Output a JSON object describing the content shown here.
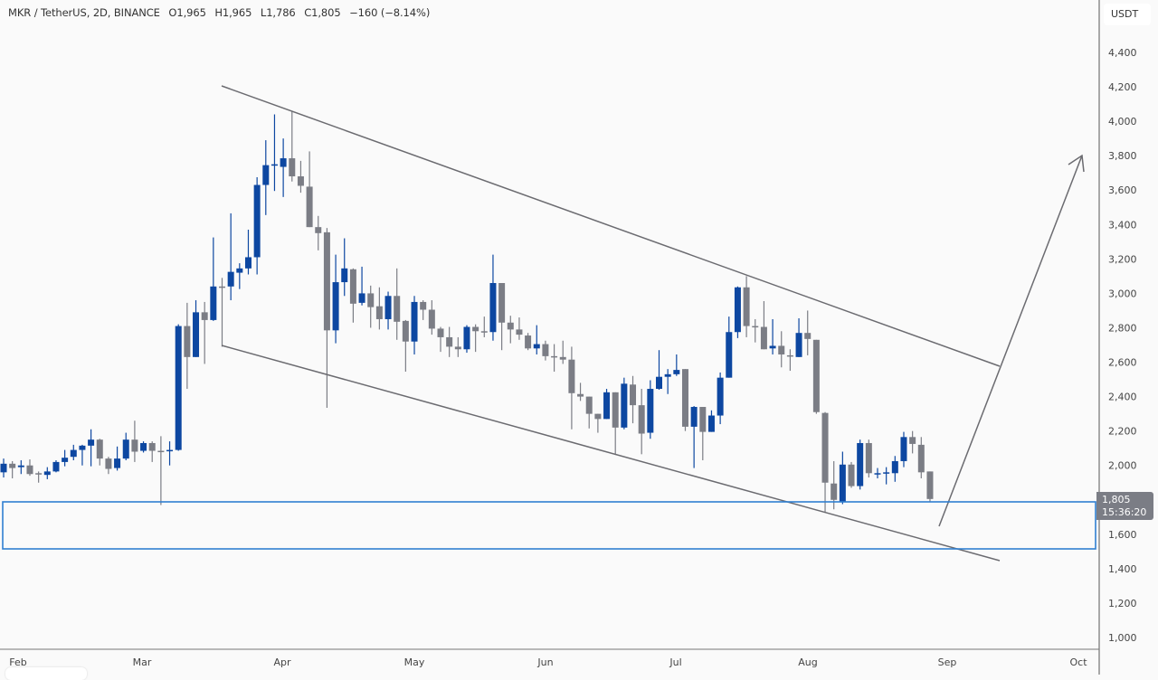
{
  "header": {
    "symbol": "MKR / TetherUS, 2D, BINANCE",
    "open": "O1,965",
    "high": "H1,965",
    "low": "L1,786",
    "close": "C1,805",
    "change": "−160 (−8.14%)"
  },
  "price_axis": {
    "unit": "USDT",
    "last_price": "1,805",
    "countdown": "15:36:20"
  },
  "colors": {
    "up": "#0d47a1",
    "down": "#7b7d85",
    "zone": "#2f7fd1",
    "trendline": "#6b6b70",
    "background": "#fafafa"
  },
  "chart_data": {
    "type": "candlestick",
    "title": "MKR / TetherUS, 2D, BINANCE",
    "x_tick_labels": [
      "Feb",
      "Mar",
      "Apr",
      "May",
      "Jun",
      "Jul",
      "Aug",
      "Sep",
      "Oct"
    ],
    "y_tick_labels": [
      "1,000",
      "1,200",
      "1,400",
      "1,600",
      "1,800",
      "2,000",
      "2,200",
      "2,400",
      "2,600",
      "2,800",
      "3,000",
      "3,200",
      "3,400",
      "3,600",
      "3,800",
      "4,000",
      "4,200",
      "4,400"
    ],
    "ylim": [
      1000,
      4400
    ],
    "grid": false,
    "ohlc_fields": [
      "open",
      "high",
      "low",
      "close"
    ],
    "candles": [
      [
        1960,
        2040,
        1930,
        2010
      ],
      [
        2010,
        2025,
        1925,
        1985
      ],
      [
        1990,
        2030,
        1950,
        2000
      ],
      [
        2000,
        2035,
        1940,
        1950
      ],
      [
        1955,
        1965,
        1900,
        1950
      ],
      [
        1945,
        1990,
        1920,
        1965
      ],
      [
        1965,
        2030,
        1960,
        2020
      ],
      [
        2020,
        2090,
        1995,
        2045
      ],
      [
        2050,
        2120,
        2030,
        2090
      ],
      [
        2090,
        2120,
        2000,
        2115
      ],
      [
        2115,
        2210,
        1995,
        2150
      ],
      [
        2150,
        2155,
        2000,
        2040
      ],
      [
        2040,
        2050,
        1950,
        1980
      ],
      [
        1985,
        2110,
        1970,
        2040
      ],
      [
        2040,
        2190,
        2030,
        2150
      ],
      [
        2150,
        2260,
        2020,
        2080
      ],
      [
        2085,
        2140,
        2075,
        2130
      ],
      [
        2130,
        2140,
        2020,
        2085
      ],
      [
        2085,
        2170,
        1770,
        2080
      ],
      [
        2085,
        2140,
        2000,
        2090
      ],
      [
        2090,
        2820,
        2085,
        2810
      ],
      [
        2810,
        2945,
        2445,
        2630
      ],
      [
        2630,
        2960,
        2630,
        2890
      ],
      [
        2890,
        2950,
        2590,
        2845
      ],
      [
        2845,
        3325,
        2840,
        3040
      ],
      [
        3040,
        3090,
        2690,
        3035
      ],
      [
        3040,
        3465,
        2960,
        3125
      ],
      [
        3120,
        3175,
        3025,
        3145
      ],
      [
        3145,
        3370,
        3110,
        3210
      ],
      [
        3210,
        3675,
        3110,
        3630
      ],
      [
        3630,
        3890,
        3455,
        3745
      ],
      [
        3745,
        4040,
        3595,
        3750
      ],
      [
        3735,
        3900,
        3560,
        3785
      ],
      [
        3785,
        4060,
        3650,
        3680
      ],
      [
        3680,
        3770,
        3585,
        3625
      ],
      [
        3620,
        3825,
        3385,
        3385
      ],
      [
        3385,
        3450,
        3250,
        3350
      ],
      [
        3355,
        3380,
        2335,
        2785
      ],
      [
        2785,
        3225,
        2710,
        3065
      ],
      [
        3065,
        3320,
        2985,
        3145
      ],
      [
        3140,
        3145,
        2830,
        2940
      ],
      [
        2945,
        3155,
        2930,
        3000
      ],
      [
        3000,
        3045,
        2800,
        2920
      ],
      [
        2925,
        3035,
        2790,
        2850
      ],
      [
        2850,
        3010,
        2790,
        2985
      ],
      [
        2985,
        3145,
        2730,
        2835
      ],
      [
        2840,
        2845,
        2545,
        2720
      ],
      [
        2720,
        2985,
        2645,
        2950
      ],
      [
        2950,
        2960,
        2845,
        2905
      ],
      [
        2905,
        2960,
        2760,
        2795
      ],
      [
        2795,
        2805,
        2660,
        2745
      ],
      [
        2745,
        2805,
        2630,
        2690
      ],
      [
        2690,
        2745,
        2630,
        2675
      ],
      [
        2675,
        2815,
        2655,
        2805
      ],
      [
        2805,
        2820,
        2660,
        2780
      ],
      [
        2780,
        2865,
        2745,
        2775
      ],
      [
        2775,
        3225,
        2725,
        3060
      ],
      [
        3060,
        3060,
        2670,
        2830
      ],
      [
        2830,
        2870,
        2710,
        2790
      ],
      [
        2790,
        2860,
        2730,
        2760
      ],
      [
        2755,
        2770,
        2670,
        2680
      ],
      [
        2680,
        2815,
        2645,
        2705
      ],
      [
        2705,
        2725,
        2610,
        2635
      ],
      [
        2635,
        2705,
        2545,
        2630
      ],
      [
        2630,
        2725,
        2590,
        2615
      ],
      [
        2615,
        2690,
        2210,
        2420
      ],
      [
        2415,
        2480,
        2375,
        2400
      ],
      [
        2400,
        2400,
        2215,
        2300
      ],
      [
        2300,
        2300,
        2190,
        2270
      ],
      [
        2270,
        2445,
        2270,
        2425
      ],
      [
        2425,
        2425,
        2065,
        2220
      ],
      [
        2220,
        2510,
        2210,
        2475
      ],
      [
        2470,
        2520,
        2245,
        2350
      ],
      [
        2350,
        2445,
        2065,
        2185
      ],
      [
        2190,
        2495,
        2155,
        2445
      ],
      [
        2445,
        2670,
        2440,
        2515
      ],
      [
        2515,
        2560,
        2415,
        2530
      ],
      [
        2530,
        2645,
        2520,
        2555
      ],
      [
        2560,
        2560,
        2200,
        2225
      ],
      [
        2225,
        2345,
        1985,
        2340
      ],
      [
        2340,
        2340,
        2030,
        2195
      ],
      [
        2195,
        2320,
        2195,
        2290
      ],
      [
        2290,
        2540,
        2240,
        2510
      ],
      [
        2510,
        2865,
        2510,
        2775
      ],
      [
        2775,
        3040,
        2740,
        3035
      ],
      [
        3035,
        3100,
        2745,
        2810
      ],
      [
        2810,
        2850,
        2715,
        2805
      ],
      [
        2805,
        2955,
        2675,
        2675
      ],
      [
        2680,
        2850,
        2645,
        2695
      ],
      [
        2695,
        2780,
        2570,
        2645
      ],
      [
        2640,
        2675,
        2550,
        2635
      ],
      [
        2630,
        2855,
        2630,
        2770
      ],
      [
        2770,
        2900,
        2640,
        2735
      ],
      [
        2730,
        2730,
        2300,
        2310
      ],
      [
        2305,
        2310,
        1725,
        1900
      ],
      [
        1895,
        2025,
        1745,
        1800
      ],
      [
        1790,
        2080,
        1775,
        2005
      ],
      [
        2005,
        2020,
        1870,
        1880
      ],
      [
        1880,
        2150,
        1860,
        2130
      ],
      [
        2130,
        2150,
        1930,
        1955
      ],
      [
        1955,
        1985,
        1925,
        1955
      ],
      [
        1955,
        1990,
        1890,
        1960
      ],
      [
        1955,
        2055,
        1905,
        2025
      ],
      [
        2025,
        2195,
        1990,
        2165
      ],
      [
        2165,
        2200,
        2070,
        2125
      ],
      [
        2120,
        2165,
        1925,
        1960
      ],
      [
        1965,
        1965,
        1786,
        1805
      ]
    ],
    "drawings": {
      "upper_trendline": [
        [
          3.0,
          4220
        ],
        [
          "end",
          2580
        ]
      ],
      "support_zone": [
        1525,
        1800
      ]
    }
  }
}
